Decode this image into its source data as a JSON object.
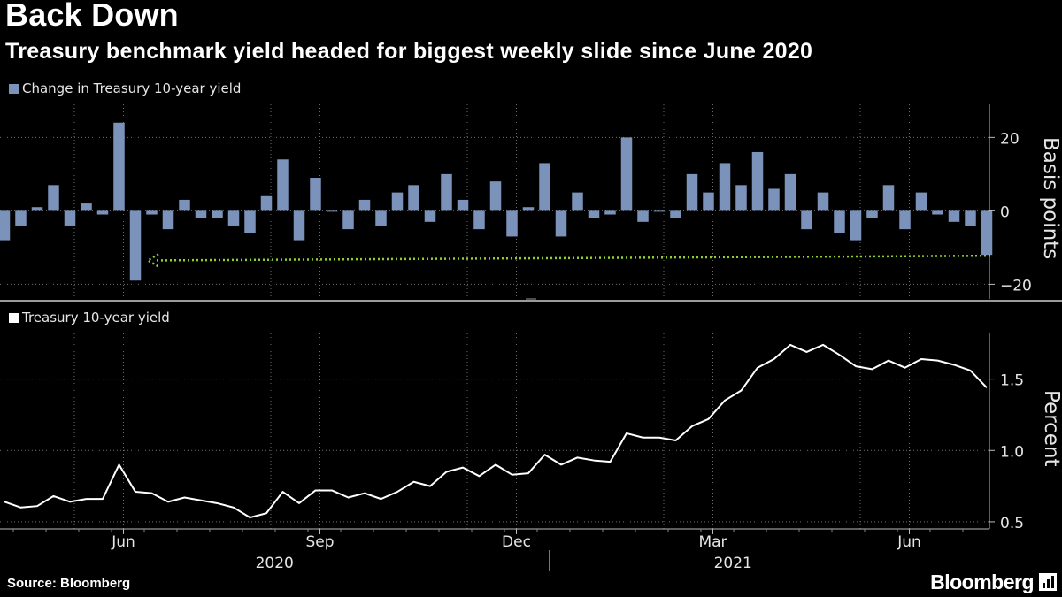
{
  "headline": "Back Down",
  "subtitle": "Treasury benchmark yield headed for biggest weekly slide since June 2020",
  "source": "Source: Bloomberg",
  "brand": "Bloomberg",
  "colors": {
    "bars": "#7b93bb",
    "line": "#ffffff",
    "arrow": "#8fd12a",
    "grid": "#6d6d6d"
  },
  "chart_data": [
    {
      "type": "bar",
      "legend": "Change in Treasury 10-year yield",
      "ylabel": "Basis points",
      "ylim": [
        -24,
        29
      ],
      "yticks": [
        20,
        0,
        -20
      ],
      "ytick_labels": [
        "20",
        "0",
        "−20"
      ],
      "annotation": "Arrow pointing from the latest weekly change back to the June 2020 drop",
      "values": [
        -8,
        -4,
        1,
        7,
        -4,
        2,
        -1,
        24,
        -19,
        -1,
        -5,
        3,
        -2,
        -2,
        -4,
        -6,
        4,
        14,
        -8,
        9,
        0,
        -5,
        3,
        -4,
        5,
        7,
        -3,
        10,
        3,
        -5,
        8,
        -7,
        1,
        13,
        -7,
        5,
        -2,
        -1,
        20,
        -3,
        0,
        -2,
        10,
        5,
        13,
        7,
        16,
        6,
        10,
        -5,
        5,
        -6,
        -8,
        -2,
        7,
        -5,
        5,
        -1,
        -3,
        -4,
        -12
      ]
    },
    {
      "type": "line",
      "legend": "Treasury 10-year yield",
      "ylabel": "Percent",
      "ylim": [
        0.45,
        1.82
      ],
      "yticks": [
        1.5,
        1.0,
        0.5
      ],
      "ytick_labels": [
        "1.5",
        "1.0",
        "0.5"
      ],
      "values": [
        0.64,
        0.6,
        0.61,
        0.68,
        0.64,
        0.66,
        0.66,
        0.9,
        0.71,
        0.7,
        0.64,
        0.67,
        0.65,
        0.63,
        0.6,
        0.53,
        0.56,
        0.71,
        0.63,
        0.72,
        0.72,
        0.67,
        0.7,
        0.66,
        0.71,
        0.78,
        0.75,
        0.85,
        0.88,
        0.82,
        0.9,
        0.83,
        0.84,
        0.97,
        0.9,
        0.95,
        0.93,
        0.92,
        1.12,
        1.09,
        1.09,
        1.07,
        1.17,
        1.22,
        1.35,
        1.42,
        1.58,
        1.64,
        1.74,
        1.69,
        1.74,
        1.67,
        1.59,
        1.57,
        1.63,
        1.58,
        1.64,
        1.63,
        1.6,
        1.56,
        1.44
      ]
    }
  ],
  "x_axis": {
    "month_labels": [
      "Jun",
      "Sep",
      "Dec",
      "Mar",
      "Jun"
    ],
    "month_positions": [
      7,
      19,
      31,
      43,
      55
    ],
    "year_labels": [
      "2020",
      "2021"
    ],
    "year_positions": [
      16.5,
      44.5
    ],
    "year_divider_position": 33
  }
}
